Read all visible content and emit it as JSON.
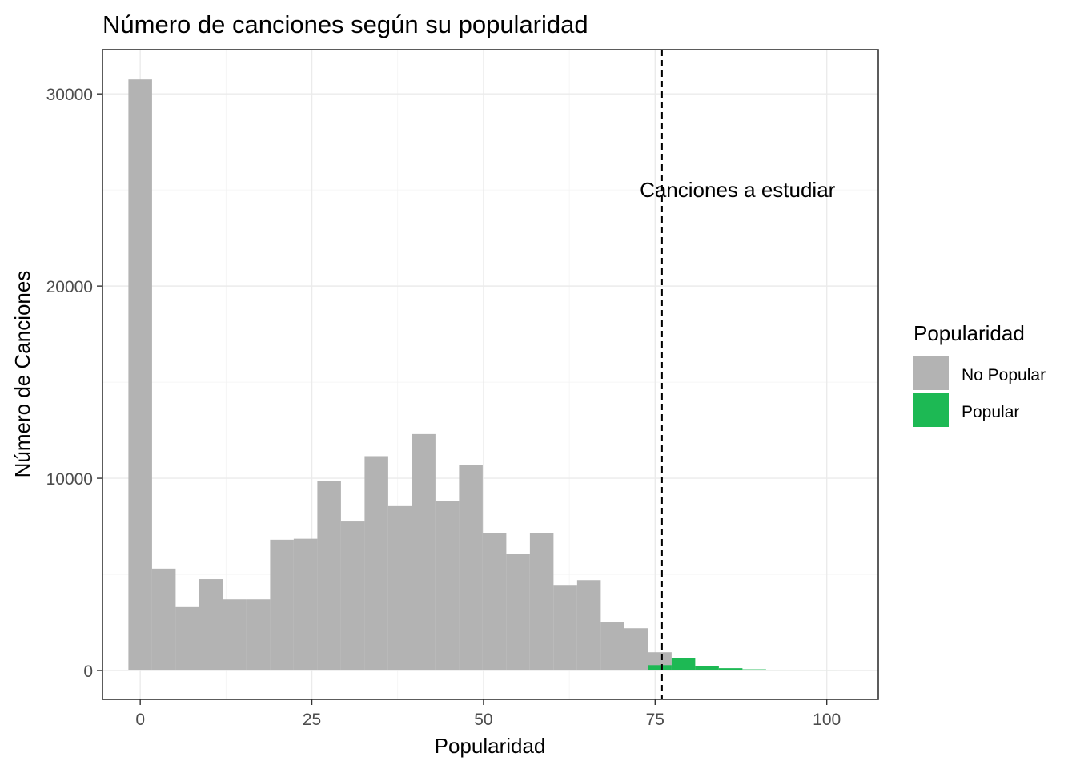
{
  "chart_data": {
    "type": "bar",
    "title": "Número de canciones según su popularidad",
    "xlabel": "Popularidad",
    "ylabel": "Número de Canciones",
    "xlim": [
      -5.5,
      107.5
    ],
    "ylim": [
      -1500,
      32300
    ],
    "x_ticks": [
      0,
      25,
      50,
      75,
      100
    ],
    "x_tick_labels": [
      "0",
      "25",
      "50",
      "75",
      "100"
    ],
    "y_ticks": [
      0,
      10000,
      20000,
      30000
    ],
    "y_tick_labels": [
      "0",
      "10000",
      "20000",
      "30000"
    ],
    "bin_width": 3.44,
    "grid": true,
    "legend": {
      "title": "Popularidad",
      "position": "right",
      "entries": [
        {
          "label": "No Popular",
          "color": "#b3b3b3"
        },
        {
          "label": "Popular",
          "color": "#1db954"
        }
      ]
    },
    "series": [
      {
        "name": "No Popular",
        "color": "#b3b3b3",
        "bins": [
          {
            "x": 0.0,
            "value": 30750
          },
          {
            "x": 3.44,
            "value": 5300
          },
          {
            "x": 6.88,
            "value": 3300
          },
          {
            "x": 10.32,
            "value": 4750
          },
          {
            "x": 13.76,
            "value": 3700
          },
          {
            "x": 17.2,
            "value": 3700
          },
          {
            "x": 20.64,
            "value": 6800
          },
          {
            "x": 24.08,
            "value": 6850
          },
          {
            "x": 27.52,
            "value": 9850
          },
          {
            "x": 30.96,
            "value": 7750
          },
          {
            "x": 34.4,
            "value": 11150
          },
          {
            "x": 37.84,
            "value": 8550
          },
          {
            "x": 41.28,
            "value": 12300
          },
          {
            "x": 44.72,
            "value": 8800
          },
          {
            "x": 48.16,
            "value": 10700
          },
          {
            "x": 51.6,
            "value": 7150
          },
          {
            "x": 55.04,
            "value": 6050
          },
          {
            "x": 58.48,
            "value": 7150
          },
          {
            "x": 61.92,
            "value": 4450
          },
          {
            "x": 65.36,
            "value": 4700
          },
          {
            "x": 68.8,
            "value": 2500
          },
          {
            "x": 72.24,
            "value": 2200
          },
          {
            "x": 75.68,
            "value": 950
          }
        ]
      },
      {
        "name": "Popular",
        "color": "#1db954",
        "bins": [
          {
            "x": 75.68,
            "value": 280
          },
          {
            "x": 79.12,
            "value": 650
          },
          {
            "x": 82.56,
            "value": 250
          },
          {
            "x": 86.0,
            "value": 120
          },
          {
            "x": 89.44,
            "value": 60
          },
          {
            "x": 92.88,
            "value": 30
          },
          {
            "x": 96.32,
            "value": 20
          },
          {
            "x": 99.76,
            "value": 10
          }
        ]
      }
    ],
    "annotations": [
      {
        "type": "vline",
        "x": 76,
        "style": "dashed",
        "color": "#000000"
      },
      {
        "type": "text",
        "text": "Canciones a estudiar",
        "x": 87,
        "y": 25000
      }
    ]
  }
}
